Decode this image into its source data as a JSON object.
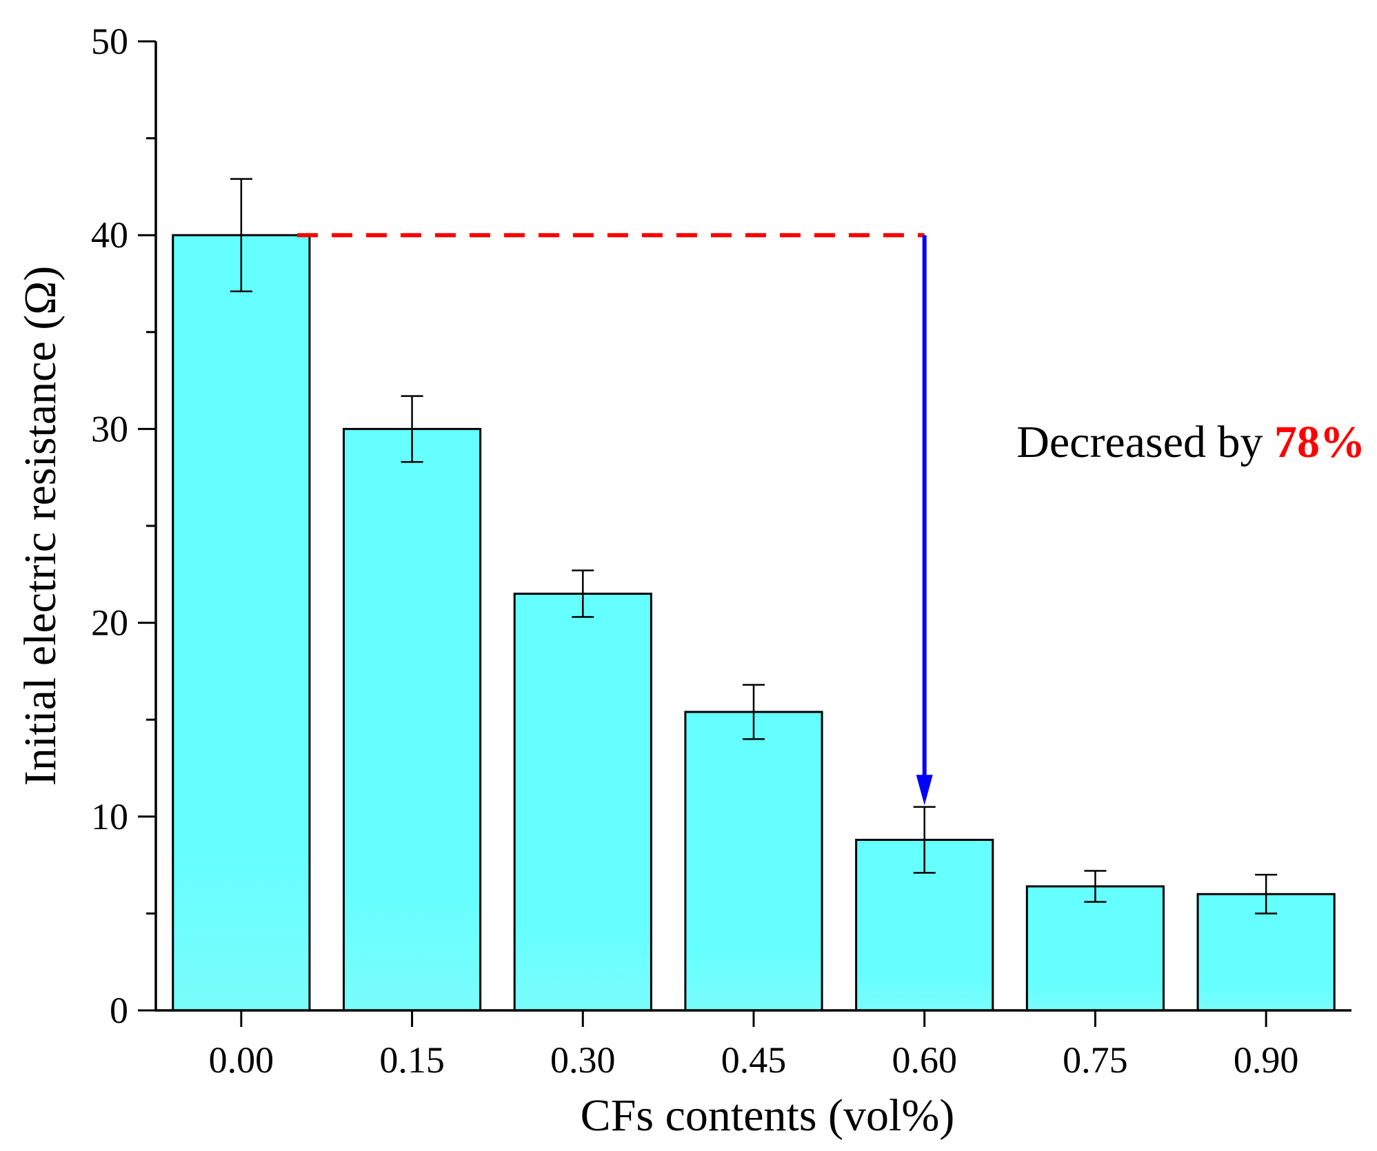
{
  "chart_data": {
    "type": "bar",
    "title": "",
    "xlabel": "CFs contents (vol%)",
    "ylabel": "Initial electric resistance (Ω)",
    "categories": [
      "0.00",
      "0.15",
      "0.30",
      "0.45",
      "0.60",
      "0.75",
      "0.90"
    ],
    "values": [
      40.0,
      30.0,
      21.5,
      15.4,
      8.8,
      6.4,
      6.0
    ],
    "errors_upper": [
      2.9,
      1.7,
      1.2,
      1.4,
      1.7,
      0.8,
      1.0
    ],
    "errors_lower": [
      2.9,
      1.7,
      1.2,
      1.4,
      1.7,
      0.8,
      1.0
    ],
    "ylim": [
      0,
      50
    ],
    "yticks": [
      0,
      10,
      20,
      30,
      40,
      50
    ],
    "grid": false,
    "legend": "none",
    "colors": {
      "bar_fill_top": "#66ffff",
      "bar_fill_bottom": "#7afcfc",
      "bar_stroke": "#000000",
      "reference_line": "#ff0000",
      "arrow": "#0000ff",
      "highlight_text": "#ff0000"
    },
    "annotations": {
      "reference_level": 40,
      "reference_from_category": "0.00",
      "arrow_category": "0.60",
      "arrow_to_value": 10.8,
      "text_prefix": "Decreased by ",
      "text_highlight": "78%"
    }
  }
}
